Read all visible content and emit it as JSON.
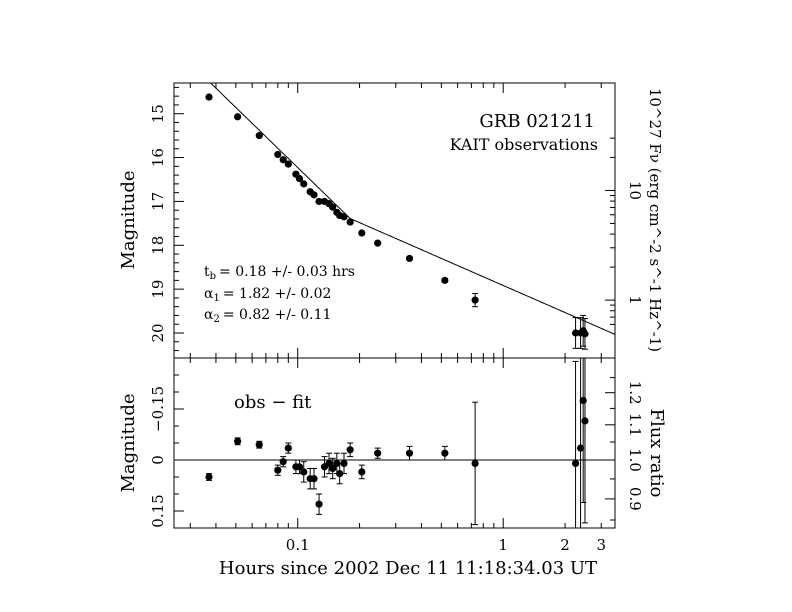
{
  "chart_data": [
    {
      "type": "scatter",
      "panel": "top",
      "title": "GRB 021211",
      "subtitle": "KAIT observations",
      "ylabel": "Magnitude",
      "right_label": "10^27 Fν  (erg cm^-2 s^-1 Hz^-1)",
      "x_scale": "log",
      "xlim": [
        0.025,
        3.5
      ],
      "ylim": [
        20.57,
        14.3
      ],
      "y_ticks": [
        15,
        16,
        17,
        18,
        19,
        20
      ],
      "right_ticks": [
        {
          "value": 10,
          "label": "10"
        },
        {
          "value": 1,
          "label": "1"
        }
      ],
      "annotations": [
        {
          "key": "tb",
          "sym": "t",
          "sub": "b",
          "text": "= 0.18 +/- 0.03 hrs"
        },
        {
          "key": "a1",
          "sym": "α",
          "sub": "1",
          "text": "= 1.82 +/- 0.02"
        },
        {
          "key": "a2",
          "sym": "α",
          "sub": "2",
          "text": "= 0.82 +/- 0.11"
        }
      ],
      "fit": {
        "model": "broken power law",
        "t_break_hrs": 0.18,
        "alpha1": 1.82,
        "alpha2": 0.82,
        "mag_at_break": 17.39
      },
      "points": [
        {
          "x": 0.037,
          "y": 14.62,
          "err": 0.03
        },
        {
          "x": 0.051,
          "y": 15.07,
          "err": 0.03
        },
        {
          "x": 0.065,
          "y": 15.5,
          "err": 0.03
        },
        {
          "x": 0.08,
          "y": 15.93,
          "err": 0.03
        },
        {
          "x": 0.085,
          "y": 16.05,
          "err": 0.03
        },
        {
          "x": 0.09,
          "y": 16.15,
          "err": 0.03
        },
        {
          "x": 0.098,
          "y": 16.38,
          "err": 0.03
        },
        {
          "x": 0.102,
          "y": 16.48,
          "err": 0.03
        },
        {
          "x": 0.107,
          "y": 16.6,
          "err": 0.03
        },
        {
          "x": 0.115,
          "y": 16.78,
          "err": 0.03
        },
        {
          "x": 0.12,
          "y": 16.85,
          "err": 0.03
        },
        {
          "x": 0.127,
          "y": 17.0,
          "err": 0.03
        },
        {
          "x": 0.135,
          "y": 17.0,
          "err": 0.03
        },
        {
          "x": 0.142,
          "y": 17.05,
          "err": 0.03
        },
        {
          "x": 0.148,
          "y": 17.13,
          "err": 0.03
        },
        {
          "x": 0.155,
          "y": 17.25,
          "err": 0.03
        },
        {
          "x": 0.16,
          "y": 17.32,
          "err": 0.03
        },
        {
          "x": 0.168,
          "y": 17.35,
          "err": 0.03
        },
        {
          "x": 0.18,
          "y": 17.47,
          "err": 0.03
        },
        {
          "x": 0.205,
          "y": 17.72,
          "err": 0.03
        },
        {
          "x": 0.245,
          "y": 17.95,
          "err": 0.03
        },
        {
          "x": 0.35,
          "y": 18.3,
          "err": 0.03
        },
        {
          "x": 0.52,
          "y": 18.8,
          "err": 0.04
        },
        {
          "x": 0.73,
          "y": 19.25,
          "err": 0.15
        },
        {
          "x": 2.25,
          "y": 20.0,
          "err": 0.35
        },
        {
          "x": 2.38,
          "y": 20.0,
          "err": 0.35
        },
        {
          "x": 2.45,
          "y": 19.95,
          "err": 0.35
        },
        {
          "x": 2.5,
          "y": 20.02,
          "err": 0.35
        }
      ]
    },
    {
      "type": "scatter",
      "panel": "bottom",
      "annotation": "obs  −  fit",
      "xlabel": "Hours since 2002 Dec 11 11:18:34.03 UT",
      "ylabel": "Magnitude",
      "right_label": "Flux ratio",
      "x_scale": "log",
      "xlim": [
        0.025,
        3.5
      ],
      "ylim": [
        0.2,
        -0.3
      ],
      "y_ticks": [
        {
          "value": -0.15,
          "label": "−0.15"
        },
        {
          "value": 0,
          "label": "0"
        },
        {
          "value": 0.15,
          "label": "0.15"
        }
      ],
      "right_ticks": [
        {
          "value": 1.2,
          "label": "1.2"
        },
        {
          "value": 1.1,
          "label": "1.1"
        },
        {
          "value": 1.0,
          "label": "1.0"
        },
        {
          "value": 0.9,
          "label": "0.9"
        }
      ],
      "x_ticks": [
        {
          "value": 0.1,
          "label": "0.1"
        },
        {
          "value": 1,
          "label": "1"
        },
        {
          "value": 2,
          "label": "2"
        },
        {
          "value": 3,
          "label": "3"
        }
      ],
      "points": [
        {
          "x": 0.037,
          "y": 0.05,
          "err": 0.01
        },
        {
          "x": 0.051,
          "y": -0.055,
          "err": 0.01
        },
        {
          "x": 0.065,
          "y": -0.045,
          "err": 0.01
        },
        {
          "x": 0.08,
          "y": 0.03,
          "err": 0.015
        },
        {
          "x": 0.085,
          "y": 0.005,
          "err": 0.015
        },
        {
          "x": 0.09,
          "y": -0.035,
          "err": 0.015
        },
        {
          "x": 0.098,
          "y": 0.02,
          "err": 0.02
        },
        {
          "x": 0.102,
          "y": 0.02,
          "err": 0.02
        },
        {
          "x": 0.107,
          "y": 0.035,
          "err": 0.03
        },
        {
          "x": 0.115,
          "y": 0.055,
          "err": 0.03
        },
        {
          "x": 0.12,
          "y": 0.055,
          "err": 0.03
        },
        {
          "x": 0.127,
          "y": 0.13,
          "err": 0.03
        },
        {
          "x": 0.135,
          "y": 0.02,
          "err": 0.03
        },
        {
          "x": 0.142,
          "y": 0.01,
          "err": 0.03
        },
        {
          "x": 0.148,
          "y": 0.025,
          "err": 0.03
        },
        {
          "x": 0.155,
          "y": 0.01,
          "err": 0.03
        },
        {
          "x": 0.16,
          "y": 0.04,
          "err": 0.03
        },
        {
          "x": 0.168,
          "y": 0.01,
          "err": 0.03
        },
        {
          "x": 0.18,
          "y": -0.03,
          "err": 0.02
        },
        {
          "x": 0.205,
          "y": 0.035,
          "err": 0.02
        },
        {
          "x": 0.245,
          "y": -0.02,
          "err": 0.015
        },
        {
          "x": 0.35,
          "y": -0.02,
          "err": 0.02
        },
        {
          "x": 0.52,
          "y": -0.02,
          "err": 0.02
        },
        {
          "x": 0.73,
          "y": 0.01,
          "err": 0.18
        },
        {
          "x": 2.25,
          "y": 0.01,
          "err": 0.3
        },
        {
          "x": 2.38,
          "y": -0.035,
          "err": 0.3
        },
        {
          "x": 2.45,
          "y": -0.175,
          "err": 0.3
        },
        {
          "x": 2.5,
          "y": -0.115,
          "err": 0.3
        }
      ]
    }
  ]
}
